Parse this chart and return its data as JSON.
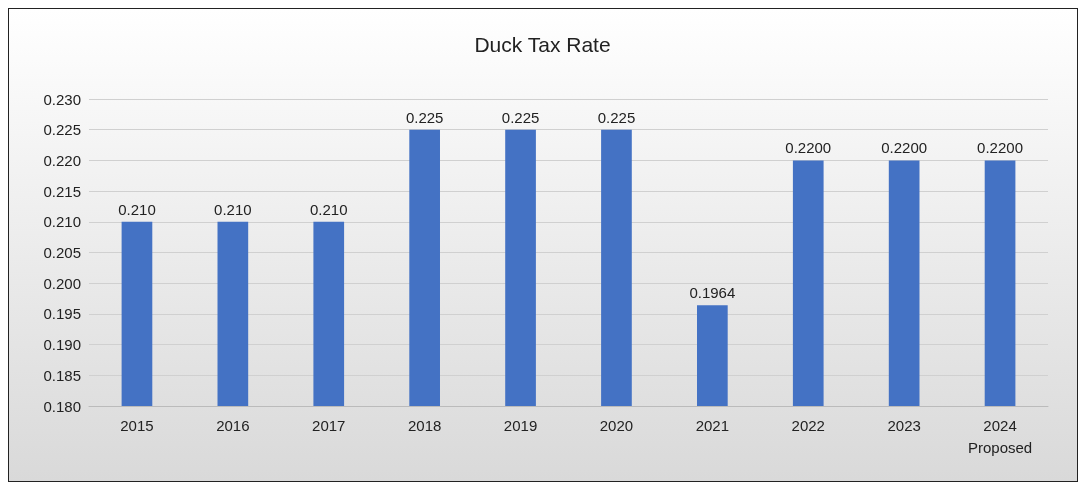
{
  "chart_data": {
    "type": "bar",
    "title": "Duck Tax Rate",
    "categories": [
      "2015",
      "2016",
      "2017",
      "2018",
      "2019",
      "2020",
      "2021",
      "2022",
      "2023",
      "2024\nProposed"
    ],
    "values": [
      0.21,
      0.21,
      0.21,
      0.225,
      0.225,
      0.225,
      0.1964,
      0.22,
      0.22,
      0.22
    ],
    "value_labels": [
      "0.210",
      "0.210",
      "0.210",
      "0.225",
      "0.225",
      "0.225",
      "0.1964",
      "0.2200",
      "0.2200",
      "0.2200"
    ],
    "color": "#4472c4",
    "ylim": [
      0.18,
      0.23
    ],
    "yticks": [
      {
        "value": 0.18,
        "label": "0.180"
      },
      {
        "value": 0.185,
        "label": "0.185"
      },
      {
        "value": 0.19,
        "label": "0.190"
      },
      {
        "value": 0.195,
        "label": "0.195"
      },
      {
        "value": 0.2,
        "label": "0.200"
      },
      {
        "value": 0.205,
        "label": "0.205"
      },
      {
        "value": 0.21,
        "label": "0.210"
      },
      {
        "value": 0.215,
        "label": "0.215"
      },
      {
        "value": 0.22,
        "label": "0.220"
      },
      {
        "value": 0.225,
        "label": "0.225"
      },
      {
        "value": 0.23,
        "label": "0.230"
      }
    ],
    "grid": "y"
  }
}
